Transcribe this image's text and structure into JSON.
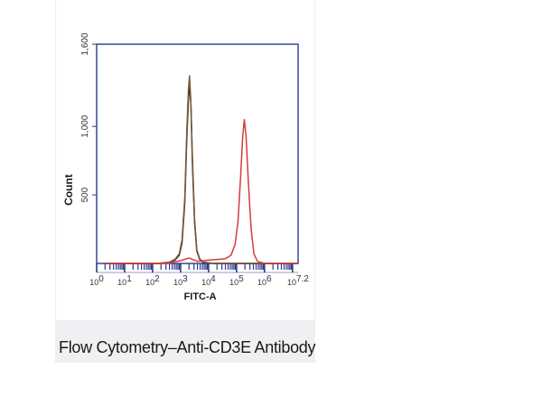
{
  "caption": "Flow Cytometry–Anti-CD3E Antibody",
  "colors": {
    "frame": "#2b3a8f",
    "tick_band": "#2b3a8f",
    "series_black": "#1a1a1a",
    "series_brown": "#7a5a3c",
    "series_red": "#d93a3a",
    "caption_bg": "#eef0f2"
  },
  "chart_data": {
    "type": "line",
    "title": "",
    "xlabel": "FITC-A",
    "ylabel": "Count",
    "x_scale": "log",
    "xlim": [
      1,
      15848932
    ],
    "ylim": [
      0,
      1600
    ],
    "yticks": [
      {
        "value": 500,
        "label": "500"
      },
      {
        "value": 1000,
        "label": "1,000"
      },
      {
        "value": 1600,
        "label": "1,600"
      }
    ],
    "xticks": [
      {
        "exp": 0,
        "base": "10",
        "sup": "0"
      },
      {
        "exp": 1,
        "base": "10",
        "sup": "1"
      },
      {
        "exp": 2,
        "base": "10",
        "sup": "2"
      },
      {
        "exp": 3,
        "base": "10",
        "sup": "3"
      },
      {
        "exp": 4,
        "base": "10",
        "sup": "4"
      },
      {
        "exp": 5,
        "base": "10",
        "sup": "5"
      },
      {
        "exp": 6,
        "base": "10",
        "sup": "6"
      },
      {
        "exp": 7.2,
        "base": "10",
        "sup": "7.2"
      }
    ],
    "series": [
      {
        "color_key": "series_black",
        "points": [
          [
            0.3,
            0
          ],
          [
            2.2,
            0
          ],
          [
            2.6,
            8
          ],
          [
            2.8,
            25
          ],
          [
            2.95,
            60
          ],
          [
            3.05,
            150
          ],
          [
            3.15,
            450
          ],
          [
            3.22,
            900
          ],
          [
            3.28,
            1200
          ],
          [
            3.33,
            1300
          ],
          [
            3.37,
            1150
          ],
          [
            3.42,
            750
          ],
          [
            3.5,
            300
          ],
          [
            3.58,
            90
          ],
          [
            3.68,
            30
          ],
          [
            3.8,
            8
          ],
          [
            4.2,
            0
          ],
          [
            7.2,
            0
          ]
        ]
      },
      {
        "color_key": "series_brown",
        "points": [
          [
            0.3,
            0
          ],
          [
            2.2,
            0
          ],
          [
            2.6,
            10
          ],
          [
            2.8,
            30
          ],
          [
            2.95,
            70
          ],
          [
            3.05,
            170
          ],
          [
            3.15,
            480
          ],
          [
            3.22,
            950
          ],
          [
            3.28,
            1270
          ],
          [
            3.32,
            1370
          ],
          [
            3.36,
            1200
          ],
          [
            3.42,
            800
          ],
          [
            3.5,
            320
          ],
          [
            3.58,
            100
          ],
          [
            3.68,
            35
          ],
          [
            3.8,
            10
          ],
          [
            4.2,
            0
          ],
          [
            7.2,
            0
          ]
        ]
      },
      {
        "color_key": "series_red",
        "points": [
          [
            0.3,
            0
          ],
          [
            2.5,
            0
          ],
          [
            3.0,
            20
          ],
          [
            3.3,
            40
          ],
          [
            3.6,
            15
          ],
          [
            4.0,
            25
          ],
          [
            4.4,
            30
          ],
          [
            4.6,
            35
          ],
          [
            4.8,
            60
          ],
          [
            4.95,
            140
          ],
          [
            5.05,
            300
          ],
          [
            5.15,
            650
          ],
          [
            5.22,
            930
          ],
          [
            5.28,
            1050
          ],
          [
            5.34,
            930
          ],
          [
            5.42,
            600
          ],
          [
            5.52,
            250
          ],
          [
            5.62,
            70
          ],
          [
            5.75,
            15
          ],
          [
            6.0,
            0
          ],
          [
            7.2,
            0
          ]
        ]
      }
    ]
  }
}
